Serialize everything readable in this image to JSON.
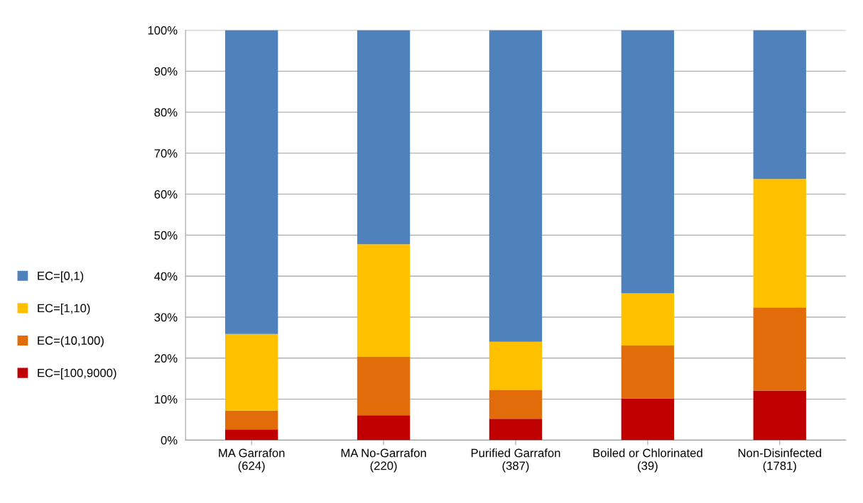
{
  "chart_data": {
    "type": "bar",
    "stacked": true,
    "categories": [
      "MA Garrafon\n(624)",
      "MA No-Garrafon\n(220)",
      "Purified Garrafon\n(387)",
      "Boiled or Chlorinated\n(39)",
      "Non-Disinfected\n(1781)"
    ],
    "series": [
      {
        "name": "EC=[100,9000)",
        "color": "#c00000",
        "values": [
          2.6,
          6.1,
          5.2,
          10.2,
          12.1
        ]
      },
      {
        "name": "EC=(10,100)",
        "color": "#e36c0a",
        "values": [
          4.6,
          14.2,
          7.0,
          12.9,
          20.3
        ]
      },
      {
        "name": "EC=[1,10)",
        "color": "#ffc000",
        "values": [
          18.7,
          27.5,
          11.8,
          12.7,
          31.3
        ]
      },
      {
        "name": "EC=[0,1)",
        "color": "#4f81bd",
        "values": [
          74.1,
          52.2,
          76.0,
          64.2,
          36.3
        ]
      }
    ],
    "ylim": [
      0,
      100
    ],
    "yticks": [
      {
        "value": 0,
        "label": "0%"
      },
      {
        "value": 10,
        "label": "10%"
      },
      {
        "value": 20,
        "label": "20%"
      },
      {
        "value": 30,
        "label": "30%"
      },
      {
        "value": 40,
        "label": "40%"
      },
      {
        "value": 50,
        "label": "50%"
      },
      {
        "value": 60,
        "label": "60%"
      },
      {
        "value": 70,
        "label": "70%"
      },
      {
        "value": 80,
        "label": "80%"
      },
      {
        "value": 90,
        "label": "90%"
      },
      {
        "value": 100,
        "label": "100%"
      }
    ],
    "grid": "y",
    "legend": "left"
  }
}
